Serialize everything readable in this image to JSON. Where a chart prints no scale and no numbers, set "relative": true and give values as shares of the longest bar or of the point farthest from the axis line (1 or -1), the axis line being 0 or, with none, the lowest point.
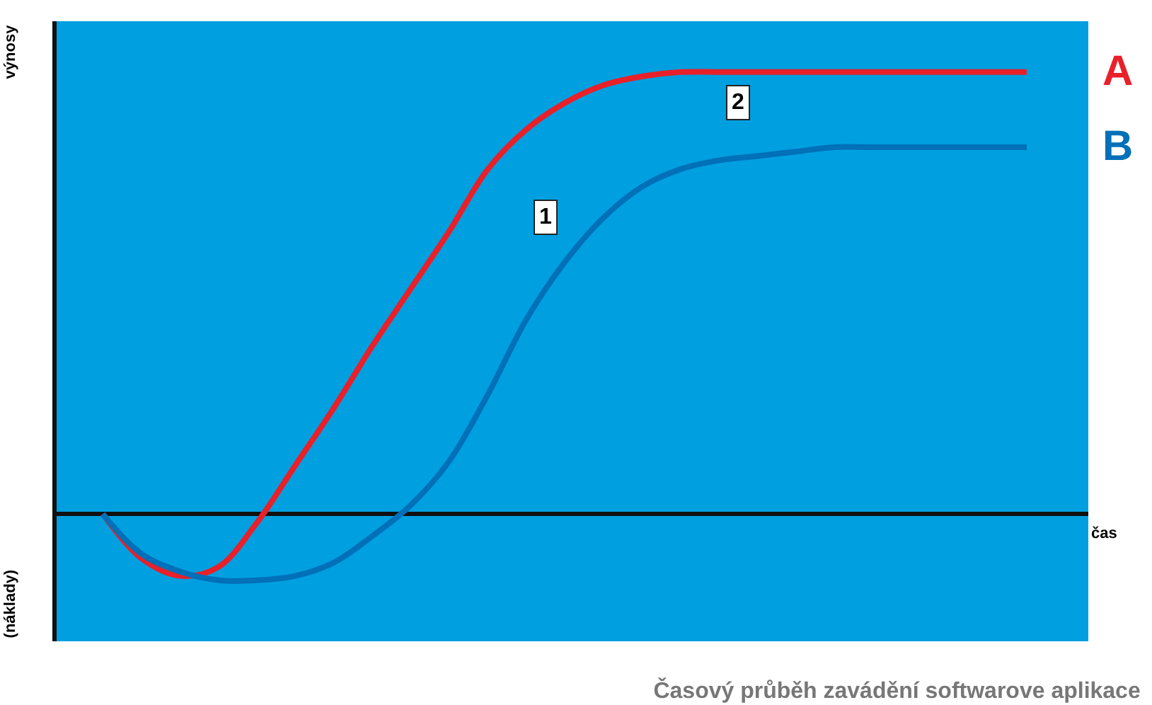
{
  "chart_data": {
    "type": "line",
    "relative": true,
    "title": "Časový průběh zavádění softwarove aplikace",
    "xlabel": "čas",
    "ylabel": "výnosy",
    "annotations": [
      "1",
      "2",
      "(náklady)"
    ],
    "categories": [
      null,
      null,
      null,
      null,
      null,
      null,
      null,
      null,
      null,
      null,
      null,
      null,
      null,
      null,
      null,
      null,
      null,
      null,
      null,
      null,
      null,
      null,
      null,
      null,
      null
    ],
    "series": [
      {
        "name": "A",
        "color": "#e8202a",
        "values": [
          0,
          -0.1,
          -0.14,
          -0.12,
          -0.02,
          0.11,
          0.24,
          0.38,
          0.51,
          0.64,
          0.78,
          0.87,
          0.93,
          0.97,
          0.99,
          1.0,
          1.0,
          1.0,
          1.0,
          1.0,
          1.0,
          1.0,
          1.0,
          1.0,
          1.0
        ]
      },
      {
        "name": "B",
        "color": "#0070b8",
        "values": [
          0,
          -0.09,
          -0.13,
          -0.15,
          -0.15,
          -0.14,
          -0.11,
          -0.05,
          0.02,
          0.12,
          0.27,
          0.44,
          0.57,
          0.67,
          0.74,
          0.78,
          0.8,
          0.81,
          0.82,
          0.83,
          0.83,
          0.83,
          0.83,
          0.83,
          0.83
        ]
      }
    ],
    "legend": false,
    "grid": false,
    "marker": "none",
    "line_style": "solid"
  }
}
